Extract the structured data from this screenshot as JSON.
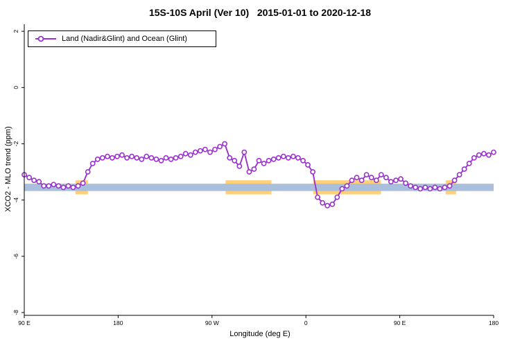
{
  "title": "15S-10S April (Ver 10)   2015-01-01 to 2020-12-18",
  "legend": {
    "label": "Land (Nadir&Glint) and Ocean (Glint)"
  },
  "chart_data": {
    "type": "line",
    "title": "15S-10S April (Ver 10)   2015-01-01 to 2020-12-18",
    "xlabel": "Longitude (deg E)",
    "ylabel": "XCO2 - MLO trend (ppm)",
    "legend_position": "top-left",
    "grid": false,
    "xlim": [
      90,
      540
    ],
    "ylim": [
      -8.1,
      2.25
    ],
    "x_ticks": [
      {
        "pos": 90,
        "label": "90 E"
      },
      {
        "pos": 180,
        "label": "180"
      },
      {
        "pos": 270,
        "label": "90 W"
      },
      {
        "pos": 360,
        "label": "0"
      },
      {
        "pos": 450,
        "label": "90 E"
      },
      {
        "pos": 540,
        "label": "180"
      }
    ],
    "y_ticks": [
      {
        "pos": 2,
        "label": "2"
      },
      {
        "pos": 0,
        "label": "0"
      },
      {
        "pos": -2,
        "label": "-2"
      },
      {
        "pos": -4,
        "label": "-4"
      },
      {
        "pos": -6,
        "label": "-6"
      },
      {
        "pos": -8,
        "label": "-8"
      }
    ],
    "bands": {
      "blue": {
        "name": "land-ocean-band",
        "color": "#A9BFDC",
        "x_range": [
          90,
          540
        ],
        "y_range": [
          -3.68,
          -3.42
        ]
      },
      "orange": {
        "name": "highlight-band",
        "color": "#FFD077",
        "y_range": [
          -3.8,
          -3.3
        ],
        "segments": [
          [
            139,
            151
          ],
          [
            283,
            327
          ],
          [
            367,
            432
          ],
          [
            494,
            504
          ]
        ]
      }
    },
    "series": [
      {
        "name": "Land (Nadir&Glint) and Ocean (Glint)",
        "color": "#9932CC",
        "marker": "open-circle",
        "marker_fill": "#ffffff",
        "x_start": 90,
        "x_step": 4.6875,
        "values": [
          -3.1,
          -3.2,
          -3.3,
          -3.35,
          -3.5,
          -3.5,
          -3.45,
          -3.5,
          -3.55,
          -3.5,
          -3.55,
          -3.5,
          -3.4,
          -3.0,
          -2.7,
          -2.55,
          -2.5,
          -2.45,
          -2.5,
          -2.45,
          -2.4,
          -2.5,
          -2.45,
          -2.5,
          -2.55,
          -2.45,
          -2.5,
          -2.55,
          -2.6,
          -2.5,
          -2.55,
          -2.5,
          -2.45,
          -2.35,
          -2.4,
          -2.3,
          -2.25,
          -2.2,
          -2.3,
          -2.2,
          -2.1,
          -2.0,
          -2.5,
          -2.6,
          -2.8,
          -2.3,
          -3.0,
          -2.9,
          -2.6,
          -2.7,
          -2.6,
          -2.55,
          -2.5,
          -2.45,
          -2.5,
          -2.45,
          -2.5,
          -2.6,
          -2.75,
          -3.0,
          -3.9,
          -4.1,
          -4.2,
          -4.15,
          -3.9,
          -3.6,
          -3.5,
          -3.3,
          -3.2,
          -3.3,
          -3.1,
          -3.2,
          -3.3,
          -3.1,
          -3.2,
          -3.35,
          -3.3,
          -3.25,
          -3.4,
          -3.5,
          -3.55,
          -3.6,
          -3.55,
          -3.6,
          -3.55,
          -3.6,
          -3.55,
          -3.5,
          -3.3,
          -3.1,
          -2.9,
          -2.7,
          -2.5,
          -2.4,
          -2.35,
          -2.4,
          -2.3
        ]
      }
    ]
  }
}
